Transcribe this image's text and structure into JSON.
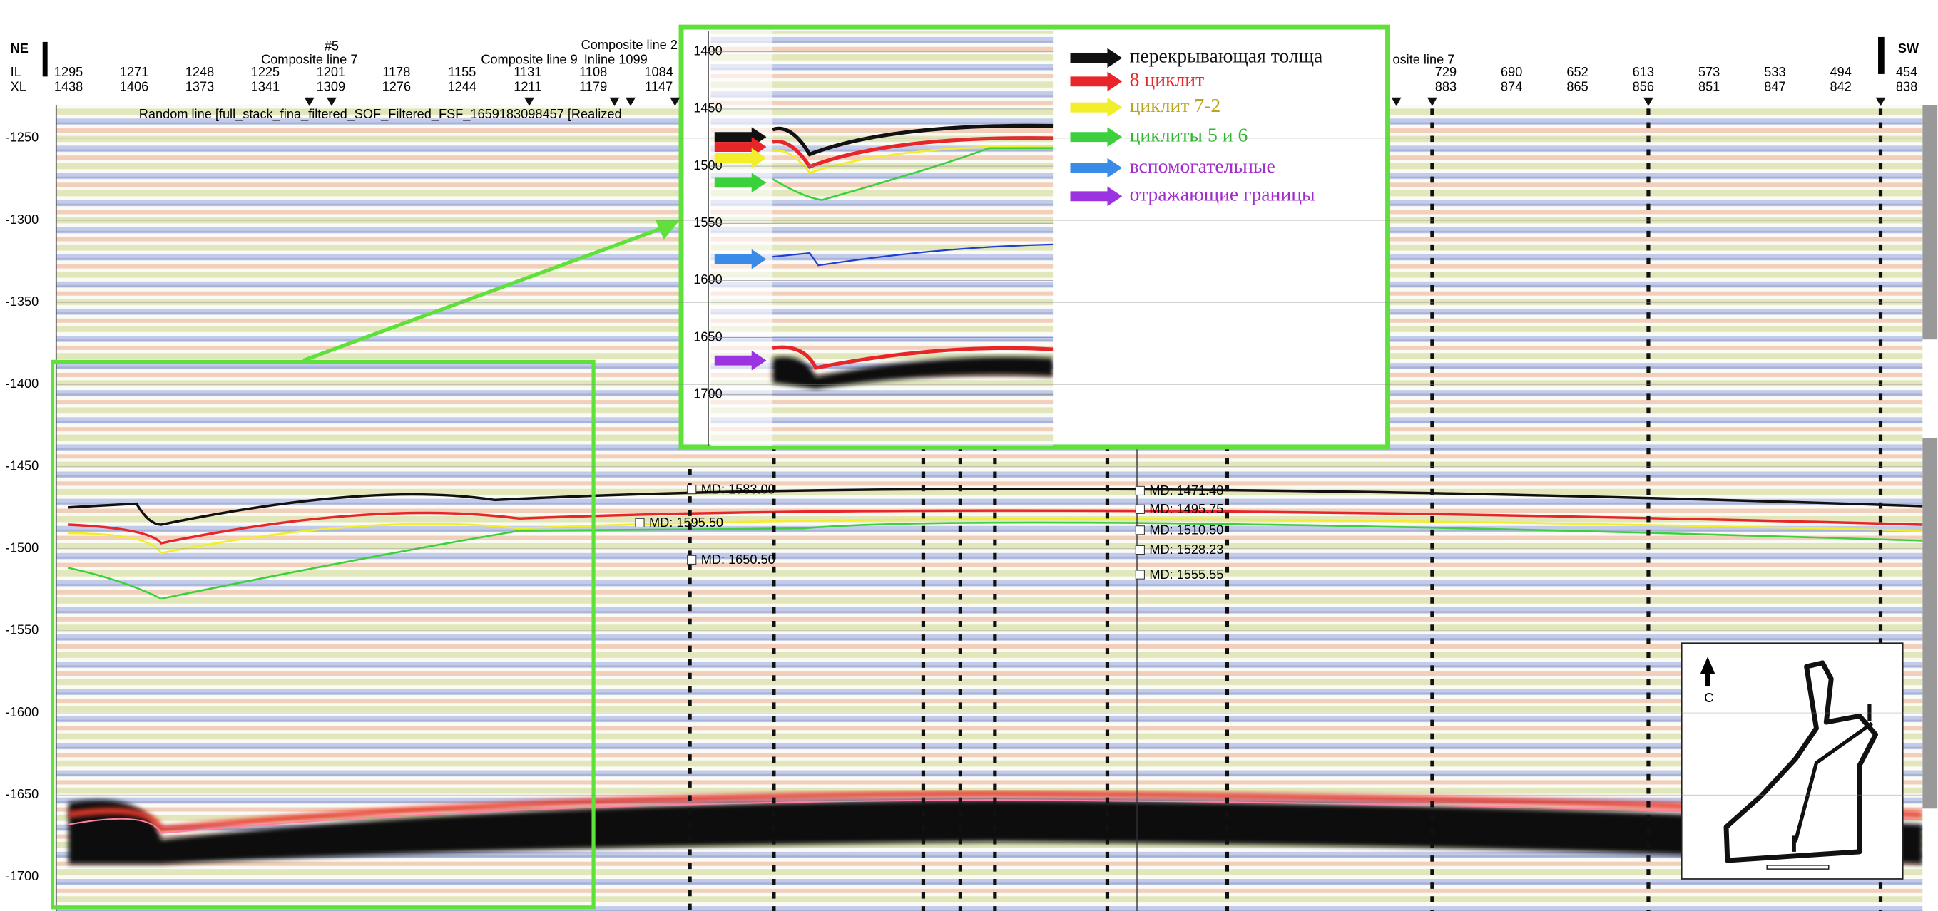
{
  "header": {
    "left_label": "NE",
    "right_label": "SW",
    "il_label": "IL",
    "xl_label": "XL",
    "il_values": [
      "1295",
      "1271",
      "1248",
      "1225",
      "1201",
      "1178",
      "1155",
      "1131",
      "1108",
      "1084"
    ],
    "xl_values": [
      "1438",
      "1406",
      "1373",
      "1341",
      "1309",
      "1276",
      "1244",
      "1211",
      "1179",
      "1147"
    ],
    "right_il_values": [
      "729",
      "690",
      "652",
      "613",
      "573",
      "533",
      "494",
      "454"
    ],
    "right_xl_values": [
      "883",
      "874",
      "865",
      "856",
      "851",
      "847",
      "842",
      "838"
    ],
    "annotations": [
      "#5",
      "Composite line 7",
      "Composite line 9",
      "Composite line 2",
      "Inline 1099",
      "osite line 7"
    ],
    "title": "Random line [full_stack_fina_filtered_SOF_Filtered_FSF_1659183098457 [Realized"
  },
  "depth_ticks": [
    "-1250",
    "-1300",
    "-1350",
    "-1400",
    "-1450",
    "-1500",
    "-1550",
    "-1600",
    "-1650",
    "-1700"
  ],
  "md_labels": [
    "MD: 1583.00",
    "MD: 1595.50",
    "MD: 1650.50",
    "MD: 1471.48",
    "MD: 1495.75",
    "MD: 1510.50",
    "MD: 1528.23",
    "MD: 1555.55"
  ],
  "inset": {
    "depth_ticks": [
      "1400",
      "1450",
      "1500",
      "1550",
      "1600",
      "1650",
      "1700"
    ]
  },
  "legend": [
    {
      "text": "перекрывающая толща",
      "color": "#111111"
    },
    {
      "text": "8 циклит",
      "color": "#e8262a"
    },
    {
      "text": "циклит 7-2",
      "color": "#f2ee2a"
    },
    {
      "text": "циклиты 5 и 6",
      "color": "#3ad13a"
    },
    {
      "text": "вспомогательные",
      "color": "#3a8be8"
    },
    {
      "text": "отражающие границы",
      "color": "#9b34e0"
    }
  ],
  "map": {
    "north_label": "C"
  }
}
